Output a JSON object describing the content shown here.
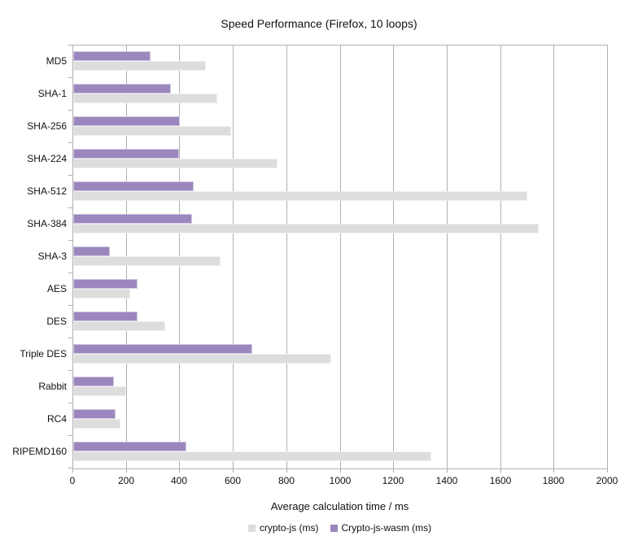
{
  "chart_data": {
    "type": "bar",
    "orientation": "horizontal",
    "title": "Speed Performance (Firefox, 10 loops)",
    "xlabel": "Average calculation time / ms",
    "ylabel": "",
    "xlim": [
      0,
      2000
    ],
    "xtick_step": 200,
    "xticks": [
      0,
      200,
      400,
      600,
      800,
      1000,
      1200,
      1400,
      1600,
      1800,
      2000
    ],
    "grid": "vertical",
    "legend_position": "bottom",
    "categories": [
      "MD5",
      "SHA-1",
      "SHA-256",
      "SHA-224",
      "SHA-512",
      "SHA-384",
      "SHA-3",
      "AES",
      "DES",
      "Triple DES",
      "Rabbit",
      "RC4",
      "RIPEMD160"
    ],
    "series": [
      {
        "name": "crypto-js (ms)",
        "color": "#dddddd",
        "values": [
          495,
          540,
          590,
          765,
          1700,
          1740,
          550,
          212,
          345,
          965,
          197,
          178,
          1340
        ]
      },
      {
        "name": "Crypto-js-wasm (ms)",
        "color": "#9b87be",
        "values": [
          290,
          365,
          398,
          395,
          452,
          443,
          138,
          240,
          240,
          670,
          151,
          157,
          423
        ]
      }
    ]
  },
  "colors": {
    "grid": "#b0b0b0",
    "axis": "#b0b0b0",
    "text": "#111111",
    "background": "#ffffff"
  }
}
